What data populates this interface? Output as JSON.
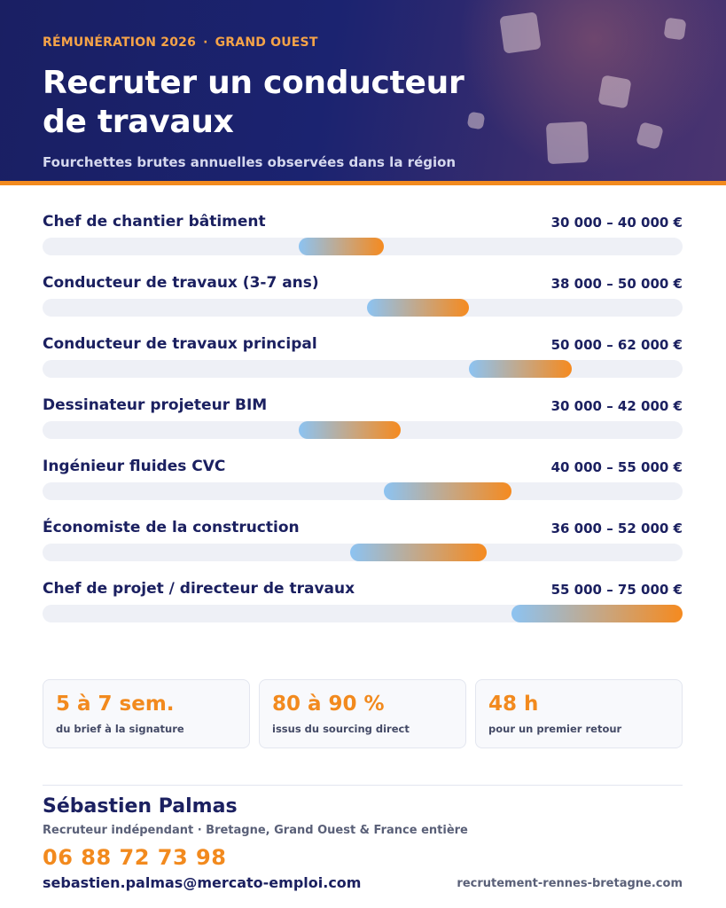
{
  "header": {
    "eyebrow_left": "RÉMUNÉRATION 2026",
    "eyebrow_separator": "·",
    "eyebrow_right": "GRAND OUEST",
    "title": "Recruter un conducteur de travaux",
    "subtitle": "Fourchettes brutes annuelles observées dans la région"
  },
  "chart_data": {
    "type": "bar",
    "categories": [
      "Chef de chantier bâtiment",
      "Conducteur de travaux (3-7 ans)",
      "Conducteur de travaux principal",
      "Dessinateur projeteur BIM",
      "Ingénieur fluides CVC",
      "Économiste de la construction",
      "Chef de projet / directeur de travaux"
    ],
    "value_labels": [
      "30 000 – 40 000 €",
      "38 000 – 50 000 €",
      "50 000 – 62 000 €",
      "30 000 – 42 000 €",
      "40 000 – 55 000 €",
      "36 000 – 52 000 €",
      "55 000 – 75 000 €"
    ],
    "ranges": [
      [
        30000,
        40000
      ],
      [
        38000,
        50000
      ],
      [
        50000,
        62000
      ],
      [
        30000,
        42000
      ],
      [
        40000,
        55000
      ],
      [
        36000,
        52000
      ],
      [
        55000,
        75000
      ]
    ],
    "xlim": [
      0,
      75000
    ],
    "unit": "€",
    "colors": {
      "track": "#eef0f6",
      "fill_start": "#8cc3f2",
      "fill_end": "#f58a1f"
    }
  },
  "stats": [
    {
      "value": "5 à 7 sem.",
      "caption": "du brief à la signature"
    },
    {
      "value": "80 à 90 %",
      "caption": "issus du sourcing direct"
    },
    {
      "value": "48 h",
      "caption": "pour un premier retour"
    }
  ],
  "contact": {
    "name": "Sébastien Palmas",
    "role": "Recruteur indépendant · Bretagne, Grand Ouest & France entière",
    "phone": "06 88 72 73 98",
    "email": "sebastien.palmas@mercato-emploi.com",
    "website": "recrutement-rennes-bretagne.com"
  },
  "colors": {
    "navy": "#1b2060",
    "accent": "#f28a1e"
  }
}
